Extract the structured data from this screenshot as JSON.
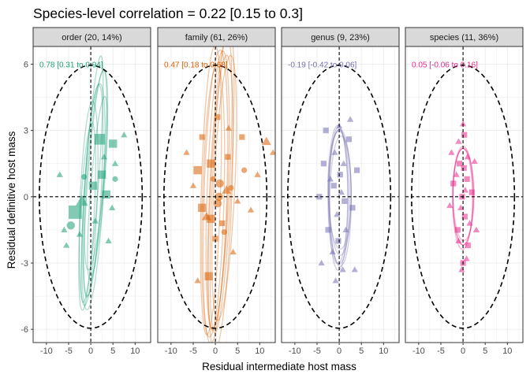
{
  "chart_data": {
    "type": "scatter",
    "title": "Species-level correlation = 0.22 [0.15 to 0.3]",
    "xlabel": "Residual intermediate host mass",
    "ylabel": "Residual definitive host mass",
    "xlim": [
      -13,
      13.5
    ],
    "ylim": [
      -6.6,
      6.8
    ],
    "xticks": [
      -10,
      -5,
      0,
      5,
      10
    ],
    "yticks": [
      -6,
      -3,
      0,
      3,
      6
    ],
    "grid": true,
    "legend": "none",
    "reference_lines": {
      "x": 0,
      "y": 0,
      "style": "dashed"
    },
    "outer_ellipse": {
      "cx": 0,
      "cy": 0,
      "rx": 11.6,
      "ry": 5.95,
      "style": "dashed"
    },
    "panels": [
      {
        "strip": "order (20, 14%)",
        "annotation": "0.78 [0.31 to 0.94]",
        "color": "#1b9e77",
        "ellipses": [
          {
            "cx": 0.5,
            "cy": 0.3,
            "rx": 5.6,
            "ry": 2.7,
            "angle": 60
          },
          {
            "cx": 1.0,
            "cy": 0.6,
            "rx": 6.4,
            "ry": 2.4,
            "angle": 55
          },
          {
            "cx": -0.5,
            "cy": -0.3,
            "rx": 5.2,
            "ry": 2.9,
            "angle": 65
          },
          {
            "cx": 0.3,
            "cy": 0.8,
            "rx": 6.8,
            "ry": 2.1,
            "angle": 58
          },
          {
            "cx": 1.2,
            "cy": 1.2,
            "rx": 5.8,
            "ry": 2.6,
            "angle": 50
          },
          {
            "cx": -0.8,
            "cy": -0.9,
            "rx": 4.9,
            "ry": 2.3,
            "angle": 62
          },
          {
            "cx": 0.6,
            "cy": 0.0,
            "rx": 6.1,
            "ry": 3.1,
            "angle": 57
          },
          {
            "cx": 1.5,
            "cy": 0.4,
            "rx": 5.3,
            "ry": 2.0,
            "angle": 52
          }
        ],
        "points": [
          {
            "x": 2.0,
            "y": 2.6,
            "shape": "square",
            "size": 3
          },
          {
            "x": 5.0,
            "y": 2.4,
            "shape": "square",
            "size": 2
          },
          {
            "x": 2.5,
            "y": 1.0,
            "shape": "square",
            "size": 2
          },
          {
            "x": 0.5,
            "y": 0.5,
            "shape": "square",
            "size": 2
          },
          {
            "x": -2.0,
            "y": -0.2,
            "shape": "triangle",
            "size": 3
          },
          {
            "x": 3.5,
            "y": 0.1,
            "shape": "square",
            "size": 2
          },
          {
            "x": -3.5,
            "y": -0.7,
            "shape": "square",
            "size": 4
          },
          {
            "x": 5.5,
            "y": 0.8,
            "shape": "circle",
            "size": 1
          },
          {
            "x": 4.0,
            "y": -2.0,
            "shape": "triangle",
            "size": 1
          },
          {
            "x": -4.5,
            "y": -1.3,
            "shape": "circle",
            "size": 2
          },
          {
            "x": -6.0,
            "y": -1.5,
            "shape": "triangle",
            "size": 1
          },
          {
            "x": 1.0,
            "y": -1.1,
            "shape": "triangle",
            "size": 1
          },
          {
            "x": -2.5,
            "y": -1.7,
            "shape": "triangle",
            "size": 1
          },
          {
            "x": 5.5,
            "y": 1.5,
            "shape": "triangle",
            "size": 1
          },
          {
            "x": -1.5,
            "y": 0.9,
            "shape": "circle",
            "size": 1
          },
          {
            "x": 3.0,
            "y": 1.8,
            "shape": "triangle",
            "size": 1
          },
          {
            "x": -7.0,
            "y": 1.0,
            "shape": "triangle",
            "size": 1
          },
          {
            "x": -5.5,
            "y": -2.2,
            "shape": "triangle",
            "size": 1
          },
          {
            "x": 4.8,
            "y": -0.5,
            "shape": "triangle",
            "size": 1
          },
          {
            "x": 7.5,
            "y": 2.8,
            "shape": "triangle",
            "size": 1
          }
        ]
      },
      {
        "strip": "family (61, 26%)",
        "annotation": "0.47 [0.18 to 0.68]",
        "color": "#d95f02",
        "ellipses": [
          {
            "cx": 0.5,
            "cy": 0.3,
            "rx": 7.0,
            "ry": 3.6,
            "angle": 68
          },
          {
            "cx": 1.0,
            "cy": 0.6,
            "rx": 7.6,
            "ry": 3.3,
            "angle": 64
          },
          {
            "cx": -0.5,
            "cy": -0.2,
            "rx": 6.7,
            "ry": 3.8,
            "angle": 72
          },
          {
            "cx": 1.5,
            "cy": 0.8,
            "rx": 7.9,
            "ry": 3.2,
            "angle": 66
          },
          {
            "cx": 0.0,
            "cy": 0.0,
            "rx": 7.3,
            "ry": 4.0,
            "angle": 70
          },
          {
            "cx": 2.0,
            "cy": 0.4,
            "rx": 6.9,
            "ry": 3.5,
            "angle": 62
          },
          {
            "cx": -1.0,
            "cy": 0.3,
            "rx": 7.1,
            "ry": 3.4,
            "angle": 74
          },
          {
            "cx": 1.2,
            "cy": -0.3,
            "rx": 7.5,
            "ry": 3.7,
            "angle": 67
          }
        ],
        "points": [
          {
            "x": 0.5,
            "y": 3.6,
            "shape": "square",
            "size": 1
          },
          {
            "x": 3.0,
            "y": 3.1,
            "shape": "triangle",
            "size": 1
          },
          {
            "x": 6.0,
            "y": 2.7,
            "shape": "square",
            "size": 1
          },
          {
            "x": 11.5,
            "y": 2.5,
            "shape": "triangle",
            "size": 2
          },
          {
            "x": 13.0,
            "y": 2.0,
            "shape": "triangle",
            "size": 1
          },
          {
            "x": -4.0,
            "y": 1.2,
            "shape": "square",
            "size": 2
          },
          {
            "x": -1.0,
            "y": 1.5,
            "shape": "square",
            "size": 2
          },
          {
            "x": 1.0,
            "y": 0.6,
            "shape": "circle",
            "size": 2
          },
          {
            "x": 2.5,
            "y": 0.3,
            "shape": "triangle",
            "size": 2
          },
          {
            "x": 0.5,
            "y": -0.3,
            "shape": "circle",
            "size": 2
          },
          {
            "x": -3.0,
            "y": -0.5,
            "shape": "square",
            "size": 2
          },
          {
            "x": -2.0,
            "y": -0.9,
            "shape": "triangle",
            "size": 2
          },
          {
            "x": 3.5,
            "y": 0.4,
            "shape": "circle",
            "size": 1
          },
          {
            "x": 1.5,
            "y": -1.2,
            "shape": "square",
            "size": 1
          },
          {
            "x": -1.0,
            "y": -1.0,
            "shape": "square",
            "size": 2
          },
          {
            "x": 5.0,
            "y": -0.2,
            "shape": "triangle",
            "size": 1
          },
          {
            "x": 0.0,
            "y": -1.9,
            "shape": "square",
            "size": 1
          },
          {
            "x": 2.0,
            "y": -1.6,
            "shape": "circle",
            "size": 1
          },
          {
            "x": -5.0,
            "y": 0.5,
            "shape": "triangle",
            "size": 1
          },
          {
            "x": -1.5,
            "y": -3.6,
            "shape": "square",
            "size": 2
          },
          {
            "x": 4.0,
            "y": -2.5,
            "shape": "triangle",
            "size": 1
          },
          {
            "x": -4.0,
            "y": -3.8,
            "shape": "triangle",
            "size": 1
          },
          {
            "x": 6.5,
            "y": 1.2,
            "shape": "circle",
            "size": 1
          },
          {
            "x": 8.0,
            "y": -0.6,
            "shape": "triangle",
            "size": 1
          },
          {
            "x": -6.5,
            "y": 2.0,
            "shape": "triangle",
            "size": 1
          },
          {
            "x": 2.8,
            "y": 1.8,
            "shape": "square",
            "size": 1
          },
          {
            "x": -3.0,
            "y": 2.7,
            "shape": "square",
            "size": 1
          },
          {
            "x": 9.5,
            "y": 1.0,
            "shape": "triangle",
            "size": 1
          },
          {
            "x": 0.8,
            "y": 0.0,
            "shape": "circle",
            "size": 2
          },
          {
            "x": -0.5,
            "y": 0.8,
            "shape": "circle",
            "size": 1
          }
        ]
      },
      {
        "strip": "genus (9, 23%)",
        "annotation": "-0.19 [-0.42 to 0.06]",
        "color": "#7570b3",
        "ellipses": [
          {
            "cx": 0.0,
            "cy": 0.0,
            "rx": 3.2,
            "ry": 3.7,
            "angle": 85
          },
          {
            "cx": 0.2,
            "cy": 0.2,
            "rx": 3.0,
            "ry": 4.0,
            "angle": 88
          },
          {
            "cx": -0.2,
            "cy": -0.1,
            "rx": 3.4,
            "ry": 3.5,
            "angle": 92
          },
          {
            "cx": 0.1,
            "cy": 0.3,
            "rx": 2.8,
            "ry": 4.2,
            "angle": 86
          },
          {
            "cx": 0.3,
            "cy": -0.2,
            "rx": 3.1,
            "ry": 3.9,
            "angle": 94
          },
          {
            "cx": -0.3,
            "cy": 0.1,
            "rx": 3.3,
            "ry": 3.6,
            "angle": 90
          }
        ],
        "points": [
          {
            "x": 0.0,
            "y": 3.2,
            "shape": "triangle",
            "size": 1
          },
          {
            "x": -1.0,
            "y": 2.0,
            "shape": "triangle",
            "size": 1
          },
          {
            "x": 1.0,
            "y": 1.5,
            "shape": "triangle",
            "size": 1
          },
          {
            "x": -2.0,
            "y": 0.8,
            "shape": "triangle",
            "size": 1
          },
          {
            "x": 0.5,
            "y": 0.2,
            "shape": "triangle",
            "size": 1
          },
          {
            "x": -0.5,
            "y": -0.8,
            "shape": "triangle",
            "size": 1
          },
          {
            "x": 1.5,
            "y": -1.5,
            "shape": "triangle",
            "size": 1
          },
          {
            "x": -1.5,
            "y": -2.5,
            "shape": "triangle",
            "size": 1
          },
          {
            "x": 0.8,
            "y": -3.3,
            "shape": "triangle",
            "size": 1
          },
          {
            "x": -3.5,
            "y": 1.5,
            "shape": "square",
            "size": 1
          },
          {
            "x": 3.0,
            "y": -0.5,
            "shape": "square",
            "size": 1
          },
          {
            "x": -4.5,
            "y": 0.0,
            "shape": "square",
            "size": 1
          },
          {
            "x": 4.0,
            "y": 1.2,
            "shape": "square",
            "size": 1
          },
          {
            "x": -2.5,
            "y": -1.5,
            "shape": "square",
            "size": 1
          },
          {
            "x": 2.2,
            "y": 2.6,
            "shape": "square",
            "size": 1
          },
          {
            "x": -0.2,
            "y": -2.0,
            "shape": "square",
            "size": 1
          },
          {
            "x": 0.2,
            "y": 1.0,
            "shape": "square",
            "size": 1
          },
          {
            "x": -1.2,
            "y": 0.5,
            "shape": "square",
            "size": 1
          },
          {
            "x": 1.2,
            "y": -0.2,
            "shape": "square",
            "size": 1
          },
          {
            "x": -4.0,
            "y": -3.0,
            "shape": "triangle",
            "size": 1
          },
          {
            "x": 3.5,
            "y": -3.3,
            "shape": "triangle",
            "size": 1
          },
          {
            "x": -3.0,
            "y": 3.0,
            "shape": "square",
            "size": 1
          },
          {
            "x": 2.5,
            "y": 3.5,
            "shape": "triangle",
            "size": 1
          },
          {
            "x": -0.8,
            "y": -3.8,
            "shape": "triangle",
            "size": 1
          }
        ]
      },
      {
        "strip": "species (11, 36%)",
        "annotation": "0.05 [-0.06 to 0.16]",
        "color": "#e7298a",
        "ellipses": [
          {
            "cx": 0.0,
            "cy": 0.0,
            "rx": 2.3,
            "ry": 3.7,
            "angle": 90
          },
          {
            "cx": 0.1,
            "cy": 0.1,
            "rx": 2.2,
            "ry": 3.8,
            "angle": 89
          },
          {
            "cx": -0.1,
            "cy": -0.1,
            "rx": 2.4,
            "ry": 3.6,
            "angle": 91
          },
          {
            "cx": 0.0,
            "cy": 0.05,
            "rx": 2.35,
            "ry": 3.75,
            "angle": 90
          }
        ],
        "points": [
          {
            "x": 0.0,
            "y": 3.3,
            "shape": "triangle",
            "size": 1
          },
          {
            "x": -1.0,
            "y": 2.5,
            "shape": "triangle",
            "size": 1
          },
          {
            "x": 1.0,
            "y": 1.8,
            "shape": "triangle",
            "size": 1
          },
          {
            "x": -1.5,
            "y": 1.0,
            "shape": "triangle",
            "size": 1
          },
          {
            "x": 0.5,
            "y": 0.3,
            "shape": "triangle",
            "size": 1
          },
          {
            "x": -0.5,
            "y": -0.5,
            "shape": "triangle",
            "size": 1
          },
          {
            "x": 1.5,
            "y": -1.2,
            "shape": "triangle",
            "size": 1
          },
          {
            "x": -1.0,
            "y": -2.0,
            "shape": "triangle",
            "size": 1
          },
          {
            "x": 0.8,
            "y": -2.8,
            "shape": "triangle",
            "size": 1
          },
          {
            "x": -0.3,
            "y": -3.3,
            "shape": "triangle",
            "size": 1
          },
          {
            "x": 0.3,
            "y": 2.8,
            "shape": "square",
            "size": 1
          },
          {
            "x": -0.8,
            "y": 1.5,
            "shape": "square",
            "size": 1
          },
          {
            "x": 0.9,
            "y": 0.8,
            "shape": "square",
            "size": 1
          },
          {
            "x": -0.2,
            "y": 0.0,
            "shape": "square",
            "size": 1
          },
          {
            "x": 0.4,
            "y": -0.9,
            "shape": "square",
            "size": 1
          },
          {
            "x": -1.2,
            "y": -1.5,
            "shape": "square",
            "size": 1
          },
          {
            "x": 1.1,
            "y": -2.2,
            "shape": "square",
            "size": 1
          },
          {
            "x": -2.2,
            "y": 0.6,
            "shape": "square",
            "size": 1
          },
          {
            "x": 2.0,
            "y": 0.2,
            "shape": "square",
            "size": 1
          },
          {
            "x": -2.6,
            "y": 2.0,
            "shape": "triangle",
            "size": 1
          },
          {
            "x": 2.6,
            "y": 1.6,
            "shape": "triangle",
            "size": 1
          },
          {
            "x": -3.0,
            "y": -0.4,
            "shape": "triangle",
            "size": 1
          },
          {
            "x": 3.0,
            "y": -1.5,
            "shape": "triangle",
            "size": 1
          },
          {
            "x": 0.0,
            "y": -3.0,
            "shape": "square",
            "size": 1
          },
          {
            "x": 0.2,
            "y": 1.3,
            "shape": "square",
            "size": 1
          }
        ]
      }
    ]
  }
}
